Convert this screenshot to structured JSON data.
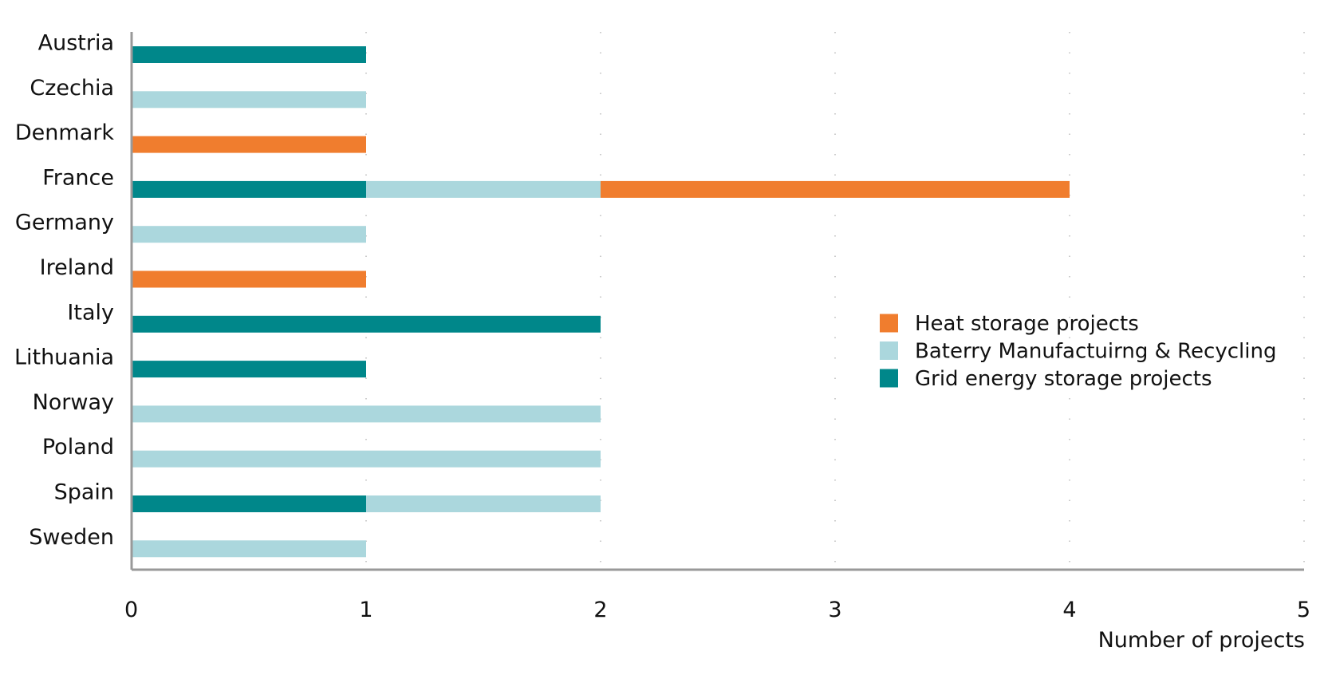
{
  "chart_data": {
    "type": "bar",
    "orientation": "horizontal",
    "stacked": true,
    "categories": [
      "Austria",
      "Czechia",
      "Denmark",
      "France",
      "Germany",
      "Ireland",
      "Italy",
      "Lithuania",
      "Norway",
      "Poland",
      "Spain",
      "Sweden"
    ],
    "series": [
      {
        "name": "Grid energy storage projects",
        "color": "#00878A",
        "values": [
          1,
          0,
          0,
          1,
          0,
          0,
          2,
          1,
          0,
          0,
          1,
          0
        ]
      },
      {
        "name": "Baterry Manufactuirng & Recycling",
        "color": "#ABD7DD",
        "values": [
          0,
          1,
          0,
          1,
          1,
          0,
          0,
          0,
          2,
          2,
          1,
          1
        ]
      },
      {
        "name": "Heat storage projects",
        "color": "#F07D2E",
        "values": [
          0,
          0,
          1,
          2,
          0,
          1,
          0,
          0,
          0,
          0,
          0,
          0
        ]
      }
    ],
    "legend_order": [
      "Heat storage projects",
      "Baterry Manufactuirng & Recycling",
      "Grid energy storage projects"
    ],
    "xlabel": "Number of projects",
    "ylabel": "",
    "xlim": [
      0,
      5
    ],
    "xticks": [
      "0",
      "1",
      "2",
      "3",
      "4",
      "5"
    ],
    "grid": "vertical dotted",
    "legend_position": "right-center"
  }
}
